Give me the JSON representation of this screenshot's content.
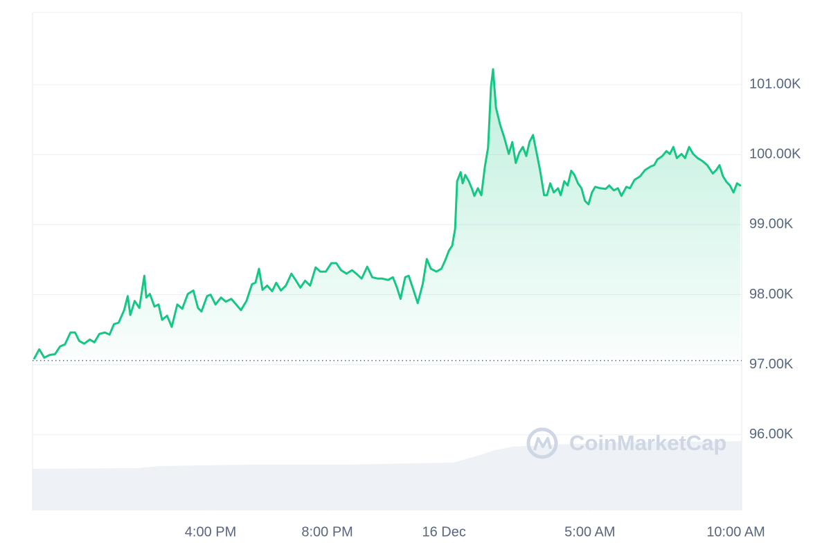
{
  "chart_data": {
    "type": "line",
    "color": "#16c784",
    "watermark": "CoinMarketCap",
    "reference_line": 97060,
    "grid": true,
    "xlim": [
      9.9,
      34.2
    ],
    "ylim": [
      94920,
      102030
    ],
    "xticks": [
      {
        "value": 16,
        "label": "4:00 PM"
      },
      {
        "value": 20,
        "label": "8:00 PM"
      },
      {
        "value": 24,
        "label": "16 Dec"
      },
      {
        "value": 29,
        "label": "5:00 AM"
      },
      {
        "value": 34,
        "label": "10:00 AM"
      }
    ],
    "yticks": [
      {
        "value": 96000,
        "label": "96.00K"
      },
      {
        "value": 97000,
        "label": "97.00K"
      },
      {
        "value": 98000,
        "label": "98.00K"
      },
      {
        "value": 99000,
        "label": "99.00K"
      },
      {
        "value": 100000,
        "label": "100.00K"
      },
      {
        "value": 101000,
        "label": "101.00K"
      }
    ],
    "x": [
      9.96,
      10.13,
      10.3,
      10.49,
      10.67,
      10.84,
      11.01,
      11.2,
      11.36,
      11.5,
      11.67,
      11.86,
      12.02,
      12.19,
      12.38,
      12.54,
      12.69,
      12.85,
      13.04,
      13.16,
      13.25,
      13.4,
      13.56,
      13.73,
      13.8,
      13.92,
      14.08,
      14.22,
      14.34,
      14.51,
      14.67,
      14.86,
      15.03,
      15.22,
      15.41,
      15.57,
      15.69,
      15.88,
      16.0,
      16.17,
      16.36,
      16.52,
      16.71,
      16.88,
      17.04,
      17.23,
      17.42,
      17.54,
      17.66,
      17.78,
      17.94,
      18.11,
      18.25,
      18.41,
      18.58,
      18.77,
      18.93,
      19.08,
      19.24,
      19.41,
      19.6,
      19.76,
      19.95,
      20.14,
      20.31,
      20.47,
      20.66,
      20.85,
      21.02,
      21.18,
      21.37,
      21.54,
      21.73,
      21.89,
      22.08,
      22.25,
      22.39,
      22.51,
      22.67,
      22.79,
      22.96,
      23.1,
      23.27,
      23.41,
      23.55,
      23.74,
      23.91,
      24.05,
      24.17,
      24.28,
      24.38,
      24.45,
      24.57,
      24.64,
      24.73,
      24.85,
      24.95,
      25.04,
      25.16,
      25.28,
      25.4,
      25.51,
      25.61,
      25.68,
      25.78,
      25.92,
      26.06,
      26.22,
      26.34,
      26.46,
      26.58,
      26.7,
      26.82,
      26.93,
      27.05,
      27.17,
      27.29,
      27.43,
      27.53,
      27.64,
      27.76,
      27.91,
      28.0,
      28.12,
      28.24,
      28.36,
      28.47,
      28.59,
      28.71,
      28.83,
      28.95,
      29.07,
      29.18,
      29.35,
      29.54,
      29.66,
      29.82,
      29.96,
      30.08,
      30.25,
      30.37,
      30.53,
      30.72,
      30.89,
      31.08,
      31.2,
      31.31,
      31.48,
      31.62,
      31.74,
      31.86,
      31.98,
      32.14,
      32.26,
      32.4,
      32.54,
      32.69,
      32.85,
      33.02,
      33.21,
      33.33,
      33.44,
      33.56,
      33.68,
      33.8,
      33.92,
      34.04,
      34.15
    ],
    "values": [
      97090,
      97220,
      97100,
      97140,
      97150,
      97260,
      97290,
      97460,
      97460,
      97340,
      97300,
      97360,
      97320,
      97440,
      97460,
      97430,
      97580,
      97600,
      97780,
      97980,
      97710,
      97910,
      97810,
      98270,
      97960,
      98010,
      97830,
      97860,
      97640,
      97700,
      97540,
      97860,
      97800,
      98010,
      98060,
      97810,
      97760,
      97980,
      98000,
      97860,
      97960,
      97900,
      97940,
      97860,
      97780,
      97910,
      98150,
      98170,
      98370,
      98070,
      98130,
      98050,
      98170,
      98060,
      98130,
      98300,
      98200,
      98100,
      98200,
      98130,
      98390,
      98330,
      98330,
      98450,
      98450,
      98350,
      98300,
      98350,
      98290,
      98230,
      98400,
      98250,
      98230,
      98230,
      98210,
      98250,
      98100,
      97940,
      98250,
      98270,
      98060,
      97880,
      98150,
      98510,
      98370,
      98330,
      98370,
      98500,
      98630,
      98700,
      98940,
      99620,
      99750,
      99590,
      99710,
      99620,
      99520,
      99410,
      99520,
      99420,
      99830,
      100100,
      100970,
      101220,
      100670,
      100430,
      100250,
      100010,
      100180,
      99880,
      100030,
      100110,
      99980,
      100180,
      100280,
      100030,
      99780,
      99420,
      99420,
      99590,
      99460,
      99520,
      99420,
      99620,
      99560,
      99770,
      99710,
      99590,
      99520,
      99340,
      99290,
      99460,
      99540,
      99520,
      99510,
      99560,
      99490,
      99520,
      99410,
      99540,
      99520,
      99640,
      99690,
      99780,
      99830,
      99850,
      99930,
      99980,
      100050,
      100010,
      100110,
      99950,
      100010,
      99950,
      100110,
      100010,
      99950,
      99910,
      99850,
      99730,
      99780,
      99850,
      99690,
      99610,
      99560,
      99460,
      99590,
      99560
    ]
  }
}
